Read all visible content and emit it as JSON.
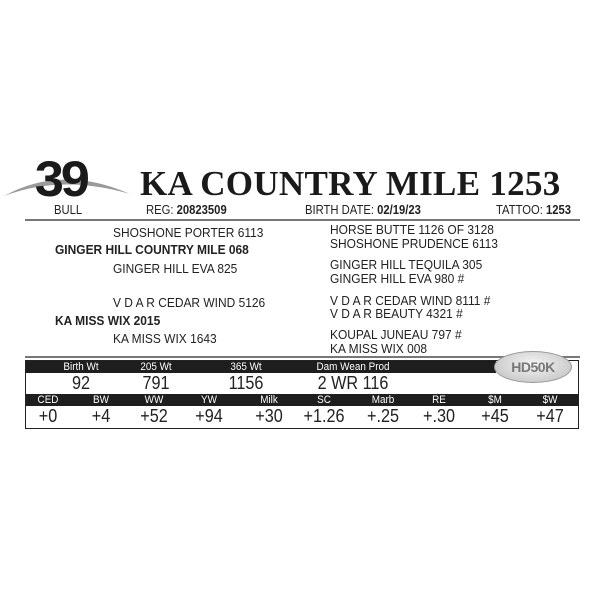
{
  "lot": {
    "number": "39",
    "type": "BULL"
  },
  "animal": {
    "name": "KA COUNTRY MILE 1253"
  },
  "info": {
    "reg_label": "REG:",
    "reg": "20823509",
    "birth_label": "BIRTH DATE:",
    "birth": "02/19/23",
    "tattoo_label": "TATTOO:",
    "tattoo": "1253"
  },
  "pedigree": {
    "sire": "GINGER HILL COUNTRY MILE 068",
    "sire_sire": "SHOSHONE PORTER 6113",
    "sire_dam": "GINGER HILL EVA 825",
    "dam": "KA MISS WIX 2015",
    "dam_sire": "V D A R CEDAR WIND 5126",
    "dam_dam": "KA MISS WIX 1643",
    "right": [
      "HORSE BUTTE 1126 OF 3128",
      "SHOSHONE PRUDENCE 6113",
      "GINGER HILL TEQUILA 305",
      "GINGER HILL EVA 980 #",
      "V D A R CEDAR WIND 8111 #",
      "V D A R BEAUTY 4321 #",
      "KOUPAL JUNEAU 797 #",
      "KA MISS WIX 008"
    ]
  },
  "performance": {
    "headers": [
      "Birth Wt",
      "205 Wt",
      "365 Wt",
      "Dam Wean Prod"
    ],
    "values": [
      "92",
      "791",
      "1156",
      "2 WR 116"
    ]
  },
  "epds": {
    "headers": [
      "CED",
      "BW",
      "WW",
      "YW",
      "Milk",
      "SC",
      "Marb",
      "RE",
      "$M",
      "$W"
    ],
    "values": [
      "+0",
      "+4",
      "+52",
      "+94",
      "+30",
      "+1.26",
      "+.25",
      "+.30",
      "+45",
      "+47"
    ]
  },
  "badge": {
    "label": "HD50K"
  }
}
